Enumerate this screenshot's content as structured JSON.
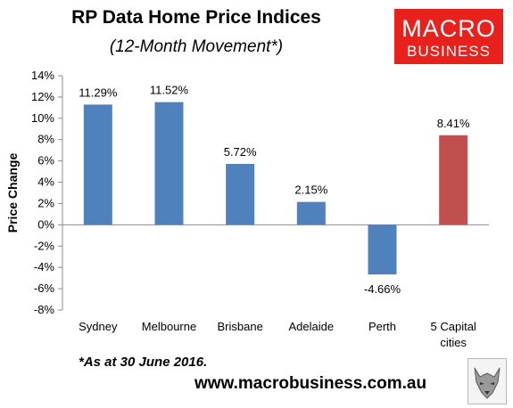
{
  "header": {
    "title": "RP Data Home Price Indices",
    "subtitle": "(12-Month Movement*)"
  },
  "logo": {
    "line1": "MACRO",
    "line2": "BUSINESS",
    "color": "#e8211c"
  },
  "footer": {
    "note": "*As at 30 June 2016.",
    "url": "www.macrobusiness.com.au",
    "badge_icon": "wolf-logo-icon"
  },
  "colors": {
    "bar_primary": "#4f81bd",
    "bar_highlight": "#c0504d"
  },
  "chart_data": {
    "type": "bar",
    "title": "RP Data Home Price Indices",
    "subtitle": "(12-Month Movement*)",
    "xlabel": "",
    "ylabel": "Price Change",
    "categories": [
      [
        "Sydney"
      ],
      [
        "Melbourne"
      ],
      [
        "Brisbane"
      ],
      [
        "Adelaide"
      ],
      [
        "Perth"
      ],
      [
        "5 Capital",
        "cities"
      ]
    ],
    "values": [
      11.29,
      11.52,
      5.72,
      2.15,
      -4.66,
      8.41
    ],
    "data_labels": [
      "11.29%",
      "11.52%",
      "5.72%",
      "2.15%",
      "-4.66%",
      "8.41%"
    ],
    "highlight_index": 5,
    "ylim": [
      -8,
      14
    ],
    "yticks": [
      14,
      12,
      10,
      8,
      6,
      4,
      2,
      0,
      -2,
      -4,
      -6,
      -8
    ],
    "ytick_labels": [
      "14%",
      "12%",
      "10%",
      "8%",
      "6%",
      "4%",
      "2%",
      "0%",
      "-2%",
      "-4%",
      "-6%",
      "-8%"
    ],
    "grid": false,
    "legend": "none"
  }
}
